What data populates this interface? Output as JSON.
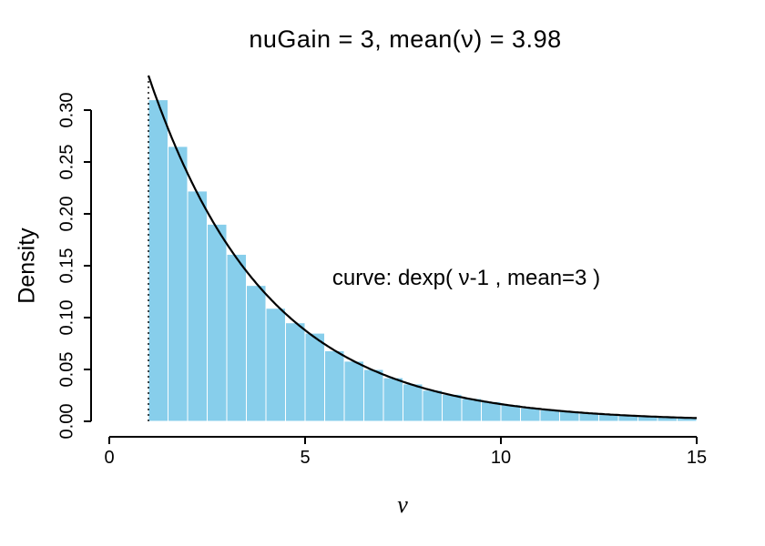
{
  "chart_data": {
    "type": "bar",
    "subtype": "histogram-with-density-curve",
    "title": "nuGain = 3, mean(ν) = 3.98",
    "xlabel": "ν",
    "ylabel": "Density",
    "annotation": "curve: dexp( ν-1 , mean=3 )",
    "x_ticks": [
      "0",
      "5",
      "10",
      "15"
    ],
    "y_ticks": [
      "0.00",
      "0.05",
      "0.10",
      "0.15",
      "0.20",
      "0.25",
      "0.30"
    ],
    "xlim": [
      0,
      15
    ],
    "ylim": [
      0,
      0.32
    ],
    "grid": "off",
    "legend": "none",
    "histogram": {
      "bin_start": 1.0,
      "bin_width": 0.5,
      "heights": [
        0.31,
        0.265,
        0.222,
        0.19,
        0.161,
        0.131,
        0.109,
        0.095,
        0.085,
        0.068,
        0.058,
        0.05,
        0.042,
        0.036,
        0.03,
        0.026,
        0.022,
        0.019,
        0.016,
        0.013,
        0.011,
        0.01,
        0.008,
        0.007,
        0.006,
        0.005,
        0.004,
        0.004
      ]
    },
    "curve": {
      "formula": "dexp(x - 1, rate = 1/3)",
      "shift": 1,
      "mean": 3,
      "x_from": 1,
      "x_to": 15
    },
    "vline": {
      "x": 1,
      "style": "dotted"
    },
    "colors": {
      "bar_fill": "#87CEEB",
      "bar_border": "#FFFFFF",
      "curve": "#000000",
      "axis": "#000000",
      "background": "#FFFFFF"
    }
  }
}
